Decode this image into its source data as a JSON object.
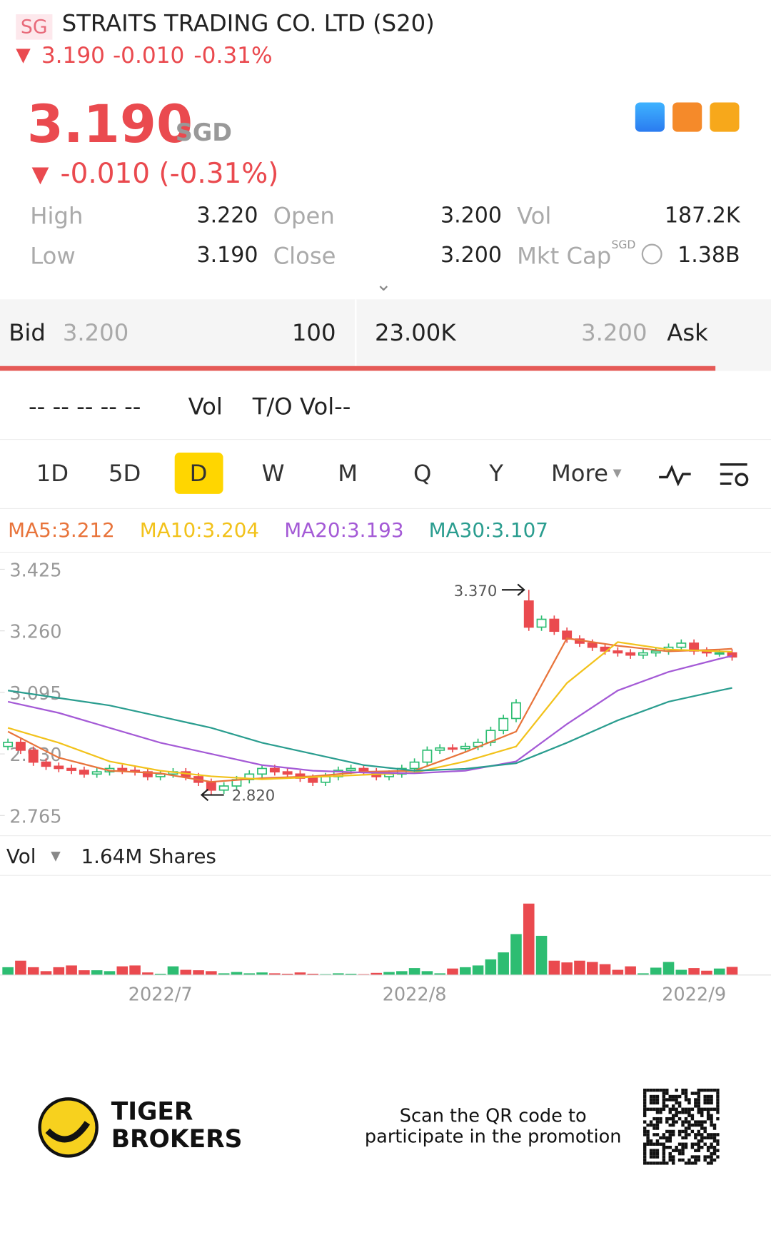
{
  "header": {
    "badge": "SG",
    "title": "STRAITS TRADING CO. LTD (S20)",
    "price": "3.190",
    "change": "-0.010",
    "percent": "-0.31%"
  },
  "quote": {
    "price": "3.190",
    "currency": "SGD",
    "change": "-0.010 (-0.31%)"
  },
  "stats": {
    "rows": [
      [
        "High",
        "3.220",
        "Open",
        "3.200",
        "Vol",
        "187.2K"
      ],
      [
        "Low",
        "3.190",
        "Close",
        "3.200",
        "Mkt Cap",
        "1.38B"
      ]
    ],
    "mkt_cap_currency": "SGD"
  },
  "order_book": {
    "bid_label": "Bid",
    "bid_price": "3.200",
    "bid_size": "100",
    "ask_size": "23.00K",
    "ask_price": "3.200",
    "ask_label": "Ask"
  },
  "turnover": {
    "placeholder": "-- -- -- -- --",
    "vol": "Vol",
    "to_vol": "T/O Vol--"
  },
  "tabs": {
    "items": [
      "1D",
      "5D",
      "D",
      "W",
      "M",
      "Q",
      "Y",
      "More"
    ],
    "active": 2
  },
  "volume_header": {
    "label": "Vol",
    "value": "1.64M Shares"
  },
  "footer": {
    "brand": [
      "TIGER",
      "BROKERS"
    ],
    "promo": [
      "Scan the QR code to",
      "participate in the promotion"
    ]
  },
  "chart_data": {
    "type": "candlestick",
    "categories": [
      null,
      null,
      null,
      null,
      null,
      null,
      null,
      null,
      null,
      null,
      null,
      null,
      "2022/7",
      null,
      null,
      null,
      null,
      null,
      null,
      null,
      null,
      null,
      null,
      null,
      null,
      null,
      null,
      null,
      null,
      null,
      null,
      null,
      "2022/8",
      null,
      null,
      null,
      null,
      null,
      null,
      null,
      null,
      null,
      null,
      null,
      null,
      null,
      null,
      null,
      null,
      null,
      null,
      null,
      null,
      null,
      "2022/9",
      null,
      null,
      null
    ],
    "open": [
      2.95,
      2.961,
      2.94,
      2.908,
      2.897,
      2.891,
      2.886,
      2.876,
      2.882,
      2.891,
      2.886,
      2.882,
      2.869,
      2.876,
      2.882,
      2.869,
      2.854,
      2.833,
      2.844,
      2.861,
      2.876,
      2.891,
      2.882,
      2.876,
      2.865,
      2.854,
      2.869,
      2.886,
      2.891,
      2.882,
      2.869,
      2.876,
      2.891,
      2.908,
      2.94,
      2.946,
      2.944,
      2.95,
      2.961,
      2.993,
      3.025,
      3.34,
      3.27,
      3.291,
      3.259,
      3.238,
      3.227,
      3.216,
      3.206,
      3.201,
      3.195,
      3.201,
      3.206,
      3.216,
      3.227,
      3.206,
      3.201,
      3.201
    ],
    "high": [
      2.971,
      2.971,
      2.95,
      2.918,
      2.907,
      2.901,
      2.896,
      2.892,
      2.901,
      2.901,
      2.896,
      2.892,
      2.886,
      2.892,
      2.892,
      2.879,
      2.864,
      2.854,
      2.871,
      2.886,
      2.901,
      2.901,
      2.892,
      2.886,
      2.875,
      2.879,
      2.896,
      2.901,
      2.901,
      2.892,
      2.886,
      2.901,
      2.918,
      2.95,
      2.956,
      2.956,
      2.96,
      2.971,
      3.003,
      3.035,
      3.077,
      3.37,
      3.301,
      3.301,
      3.269,
      3.248,
      3.237,
      3.226,
      3.216,
      3.211,
      3.211,
      3.216,
      3.226,
      3.237,
      3.237,
      3.216,
      3.211,
      3.211
    ],
    "low": [
      2.94,
      2.93,
      2.898,
      2.887,
      2.881,
      2.876,
      2.866,
      2.866,
      2.872,
      2.876,
      2.872,
      2.859,
      2.859,
      2.866,
      2.859,
      2.844,
      2.82,
      2.823,
      2.834,
      2.851,
      2.866,
      2.872,
      2.866,
      2.855,
      2.844,
      2.844,
      2.859,
      2.876,
      2.872,
      2.859,
      2.859,
      2.866,
      2.881,
      2.898,
      2.93,
      2.934,
      2.934,
      2.94,
      2.951,
      2.983,
      3.015,
      3.26,
      3.26,
      3.249,
      3.228,
      3.217,
      3.206,
      3.196,
      3.191,
      3.185,
      3.185,
      3.191,
      3.196,
      3.206,
      3.196,
      3.191,
      3.191,
      3.18
    ],
    "close": [
      2.961,
      2.94,
      2.908,
      2.897,
      2.891,
      2.886,
      2.876,
      2.882,
      2.891,
      2.886,
      2.882,
      2.869,
      2.876,
      2.882,
      2.869,
      2.854,
      2.833,
      2.844,
      2.861,
      2.876,
      2.891,
      2.882,
      2.876,
      2.865,
      2.854,
      2.869,
      2.886,
      2.891,
      2.882,
      2.869,
      2.876,
      2.891,
      2.908,
      2.94,
      2.946,
      2.944,
      2.95,
      2.961,
      2.993,
      3.025,
      3.067,
      3.27,
      3.291,
      3.259,
      3.238,
      3.227,
      3.216,
      3.206,
      3.201,
      3.195,
      3.201,
      3.206,
      3.216,
      3.227,
      3.206,
      3.201,
      3.201,
      3.19
    ],
    "volume": [
      180000,
      330000,
      180000,
      90000,
      180000,
      220000,
      110000,
      110000,
      90000,
      200000,
      220000,
      60000,
      30000,
      200000,
      120000,
      110000,
      90000,
      40000,
      70000,
      40000,
      60000,
      40000,
      30000,
      60000,
      30000,
      20000,
      40000,
      30000,
      20000,
      50000,
      70000,
      90000,
      160000,
      90000,
      40000,
      150000,
      180000,
      220000,
      360000,
      520000,
      940000,
      1640000,
      900000,
      330000,
      290000,
      330000,
      300000,
      250000,
      120000,
      200000,
      40000,
      170000,
      300000,
      120000,
      160000,
      100000,
      150000,
      187200
    ],
    "up_color": "#2dbd72",
    "down_color": "#ea4a4f",
    "series": [
      {
        "name": "MA5:3.212",
        "color": "#e8743b",
        "x": [
          0,
          4,
          8,
          12,
          16,
          20,
          24,
          28,
          32,
          36,
          40,
          44,
          48,
          52,
          56,
          57
        ],
        "values": [
          2.99,
          2.92,
          2.885,
          2.878,
          2.855,
          2.865,
          2.87,
          2.882,
          2.885,
          2.935,
          2.99,
          3.24,
          3.22,
          3.205,
          3.21,
          3.212
        ]
      },
      {
        "name": "MA10:3.204",
        "color": "#f2c21b",
        "x": [
          0,
          4,
          8,
          12,
          16,
          20,
          24,
          28,
          32,
          36,
          40,
          44,
          48,
          52,
          56,
          57
        ],
        "values": [
          3.0,
          2.96,
          2.91,
          2.885,
          2.87,
          2.862,
          2.868,
          2.874,
          2.88,
          2.91,
          2.95,
          3.12,
          3.23,
          3.21,
          3.205,
          3.204
        ]
      },
      {
        "name": "MA20:3.193",
        "color": "#a45ad6",
        "x": [
          0,
          4,
          8,
          12,
          16,
          20,
          24,
          28,
          32,
          36,
          40,
          44,
          48,
          52,
          56,
          57
        ],
        "values": [
          3.07,
          3.04,
          3.0,
          2.96,
          2.93,
          2.9,
          2.885,
          2.88,
          2.878,
          2.885,
          2.91,
          3.01,
          3.1,
          3.15,
          3.185,
          3.193
        ]
      },
      {
        "name": "MA30:3.107",
        "color": "#2a9d8f",
        "x": [
          0,
          4,
          8,
          12,
          16,
          20,
          24,
          28,
          32,
          36,
          40,
          44,
          48,
          52,
          56,
          57
        ],
        "values": [
          3.1,
          3.08,
          3.06,
          3.03,
          3.0,
          2.96,
          2.93,
          2.9,
          2.885,
          2.89,
          2.905,
          2.96,
          3.02,
          3.07,
          3.1,
          3.107
        ]
      }
    ],
    "ylim": [
      2.765,
      3.425
    ],
    "yticks": [
      3.425,
      {
        "value": 3.26,
        "label": "3.260"
      },
      3.095,
      {
        "value": 2.93,
        "label": "2.930"
      },
      2.765
    ],
    "max_annotation": {
      "value": 3.37,
      "label": "3.370"
    },
    "min_annotation": {
      "value": 2.82,
      "label": "2.820"
    }
  }
}
